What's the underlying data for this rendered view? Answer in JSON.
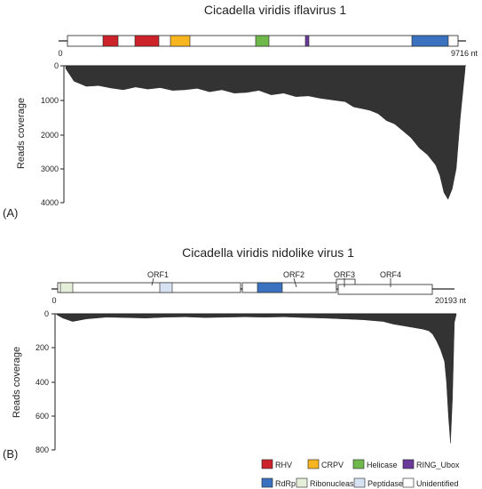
{
  "colors": {
    "RHV": "#cc2229",
    "CRPV": "#f7b51f",
    "Helicase": "#6fb84a",
    "RING_Ubox": "#6a3a99",
    "RdRp": "#3b72bf",
    "Ribonuclease": "#e4eed8",
    "Peptidase": "#d6e2f2",
    "Unidentified": "#ffffff",
    "coverage": "#333333"
  },
  "panel_a": {
    "label": "(A)",
    "title": "Cicadella viridis iflavirus 1",
    "genome_start": "0",
    "genome_end": "9716 nt",
    "ylabel": "Reads coverage",
    "yticks": [
      "0",
      "1000",
      "2000",
      "3000",
      "4000"
    ]
  },
  "panel_b": {
    "label": "(B)",
    "title": "Cicadella viridis nidolike virus 1",
    "genome_start": "0",
    "genome_end": "20193 nt",
    "ylabel": "Reads coverage",
    "yticks": [
      "0",
      "200",
      "400",
      "600",
      "800"
    ],
    "orfs": [
      "ORF1",
      "ORF2",
      "ORF3",
      "ORF4"
    ]
  },
  "legend": [
    {
      "label": "RHV",
      "color": "#cc2229"
    },
    {
      "label": "CRPV",
      "color": "#f7b51f"
    },
    {
      "label": "Helicase",
      "color": "#6fb84a"
    },
    {
      "label": "RING_Ubox",
      "color": "#6a3a99"
    },
    {
      "label": "RdRp",
      "color": "#3b72bf"
    },
    {
      "label": "Ribonuclease",
      "color": "#e4eed8"
    },
    {
      "label": "Peptidase",
      "color": "#d6e2f2"
    },
    {
      "label": "Unidentified",
      "color": "#ffffff"
    }
  ],
  "coverage_a": {
    "x_max": 9716,
    "y_max": 4000,
    "x": [
      0,
      200,
      500,
      800,
      1100,
      1400,
      1700,
      2000,
      2300,
      2600,
      2900,
      3200,
      3500,
      3800,
      4100,
      4400,
      4700,
      5000,
      5300,
      5600,
      5900,
      6200,
      6500,
      6800,
      7000,
      7200,
      7400,
      7600,
      7800,
      8000,
      8200,
      8400,
      8600,
      8800,
      9000,
      9100,
      9200,
      9300,
      9400,
      9500,
      9600,
      9716
    ],
    "y": [
      80,
      450,
      600,
      580,
      650,
      700,
      620,
      680,
      640,
      720,
      700,
      660,
      760,
      700,
      800,
      780,
      720,
      850,
      800,
      900,
      880,
      950,
      1000,
      1050,
      1200,
      1250,
      1300,
      1400,
      1600,
      1700,
      1900,
      2100,
      2400,
      2600,
      2900,
      3200,
      3700,
      3900,
      3600,
      3000,
      1500,
      100
    ]
  },
  "coverage_b": {
    "x_max": 20193,
    "y_max": 800,
    "x": [
      0,
      300,
      800,
      1500,
      2500,
      3500,
      4500,
      5500,
      6500,
      7500,
      8500,
      9500,
      10500,
      11500,
      12500,
      13500,
      14500,
      15500,
      16500,
      17000,
      17500,
      18000,
      18500,
      18800,
      19000,
      19200,
      19400,
      19600,
      19700,
      19800,
      19900,
      20000,
      20100,
      20193
    ],
    "y": [
      5,
      25,
      45,
      30,
      20,
      22,
      25,
      20,
      18,
      22,
      20,
      18,
      20,
      18,
      22,
      25,
      30,
      35,
      45,
      60,
      70,
      80,
      90,
      100,
      120,
      160,
      210,
      280,
      400,
      600,
      760,
      500,
      50,
      5
    ]
  }
}
